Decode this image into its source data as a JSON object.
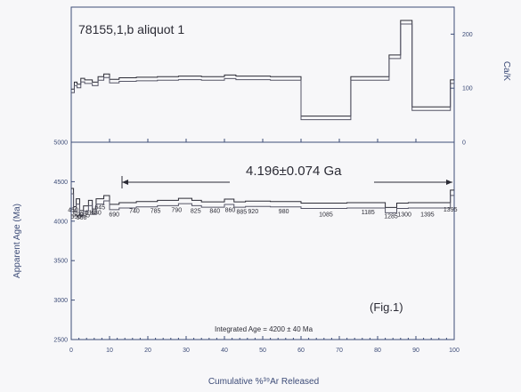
{
  "chart_data": [
    {
      "type": "line",
      "panel": "top",
      "title": "78155,1,b aliquot 1",
      "ylabel": "Ca/K",
      "ylim": [
        0,
        250
      ],
      "yticks": [
        0,
        100,
        200
      ],
      "xlim": [
        0,
        100
      ],
      "steps": [
        {
          "x0": 0,
          "x1": 0.8,
          "y": 95
        },
        {
          "x0": 0.8,
          "x1": 1.5,
          "y": 108
        },
        {
          "x0": 1.5,
          "x1": 2.5,
          "y": 104
        },
        {
          "x0": 2.5,
          "x1": 3.5,
          "y": 115
        },
        {
          "x0": 3.5,
          "x1": 5.5,
          "y": 112
        },
        {
          "x0": 5.5,
          "x1": 7,
          "y": 108
        },
        {
          "x0": 7,
          "x1": 8.5,
          "y": 118
        },
        {
          "x0": 8.5,
          "x1": 10,
          "y": 123
        },
        {
          "x0": 10,
          "x1": 12.5,
          "y": 113
        },
        {
          "x0": 12.5,
          "x1": 17,
          "y": 116
        },
        {
          "x0": 17,
          "x1": 22.5,
          "y": 117
        },
        {
          "x0": 22.5,
          "x1": 28,
          "y": 118
        },
        {
          "x0": 28,
          "x1": 34,
          "y": 119
        },
        {
          "x0": 34,
          "x1": 40,
          "y": 118
        },
        {
          "x0": 40,
          "x1": 43,
          "y": 121
        },
        {
          "x0": 43,
          "x1": 46,
          "y": 119
        },
        {
          "x0": 46,
          "x1": 52,
          "y": 119
        },
        {
          "x0": 52,
          "x1": 60,
          "y": 118
        },
        {
          "x0": 60,
          "x1": 73,
          "y": 45
        },
        {
          "x0": 73,
          "x1": 83,
          "y": 118
        },
        {
          "x0": 83,
          "x1": 86,
          "y": 158
        },
        {
          "x0": 86,
          "x1": 89,
          "y": 222
        },
        {
          "x0": 89,
          "x1": 99,
          "y": 62
        },
        {
          "x0": 99,
          "x1": 100,
          "y": 112
        }
      ]
    },
    {
      "type": "line",
      "panel": "bottom",
      "ylabel": "Apparent Age (Ma)",
      "xlabel": "Cumulative %³⁹Ar Released",
      "ylim": [
        2500,
        5000
      ],
      "yticks": [
        2500,
        3000,
        3500,
        4000,
        4500,
        5000
      ],
      "xlim": [
        0,
        100
      ],
      "xticks": [
        0,
        10,
        20,
        30,
        40,
        50,
        60,
        70,
        80,
        90,
        100
      ],
      "plateau_label": "4.196±0.074 Ga",
      "plateau_range": [
        13,
        100
      ],
      "integrated_age": "Integrated Age = 4200 ± 40 Ma",
      "figure_label": "(Fig.1)",
      "steps": [
        {
          "x0": 0,
          "x1": 0.6,
          "y": 4380,
          "t": "450"
        },
        {
          "x0": 0.6,
          "x1": 1.3,
          "y": 4150,
          "t": "500"
        },
        {
          "x0": 1.3,
          "x1": 2.2,
          "y": 4250,
          "t": "550"
        },
        {
          "x0": 2.2,
          "x1": 3.2,
          "y": 4100,
          "t": "560"
        },
        {
          "x0": 3.2,
          "x1": 4.5,
          "y": 4160,
          "t": "595"
        },
        {
          "x0": 4.5,
          "x1": 5.5,
          "y": 4230,
          "t": "610"
        },
        {
          "x0": 5.5,
          "x1": 6.5,
          "y": 4120,
          "t": "630"
        },
        {
          "x0": 6.5,
          "x1": 8.5,
          "y": 4250,
          "t": "645"
        },
        {
          "x0": 8.5,
          "x1": 10,
          "y": 4290,
          "t": "660"
        },
        {
          "x0": 10,
          "x1": 12.5,
          "y": 4180,
          "t": "690"
        },
        {
          "x0": 12.5,
          "x1": 17,
          "y": 4200,
          "t": "740"
        },
        {
          "x0": 17,
          "x1": 22.5,
          "y": 4215,
          "t": "785"
        },
        {
          "x0": 22.5,
          "x1": 28,
          "y": 4230,
          "t": "790"
        },
        {
          "x0": 28,
          "x1": 31.5,
          "y": 4255,
          "t": "825"
        },
        {
          "x0": 31.5,
          "x1": 34,
          "y": 4230,
          "t": "825"
        },
        {
          "x0": 34,
          "x1": 40,
          "y": 4210,
          "t": "840"
        },
        {
          "x0": 40,
          "x1": 42.5,
          "y": 4245,
          "t": "860"
        },
        {
          "x0": 42.5,
          "x1": 45.5,
          "y": 4210,
          "t": "885"
        },
        {
          "x0": 45.5,
          "x1": 52,
          "y": 4220,
          "t": "920"
        },
        {
          "x0": 52,
          "x1": 60,
          "y": 4215,
          "t": "980"
        },
        {
          "x0": 60,
          "x1": 72,
          "y": 4195,
          "t": "1085"
        },
        {
          "x0": 72,
          "x1": 82,
          "y": 4200,
          "t": "1185"
        },
        {
          "x0": 82,
          "x1": 85,
          "y": 4140,
          "t": "1285"
        },
        {
          "x0": 85,
          "x1": 88,
          "y": 4195,
          "t": "1300"
        },
        {
          "x0": 88,
          "x1": 99,
          "y": 4200,
          "t": "1395"
        },
        {
          "x0": 99,
          "x1": 100,
          "y": 4360,
          "t": "1395"
        }
      ]
    }
  ],
  "temp_labels": [
    {
      "x": 0.5,
      "y": 4115,
      "t": "450"
    },
    {
      "x": 1.8,
      "y": 4060,
      "t": "500"
    },
    {
      "x": 1.2,
      "y": 4030,
      "t": "550"
    },
    {
      "x": 2.7,
      "y": 4020,
      "t": "560"
    },
    {
      "x": 3.5,
      "y": 4050,
      "t": "595"
    },
    {
      "x": 5.0,
      "y": 4085,
      "t": "610"
    },
    {
      "x": 6.5,
      "y": 4085,
      "t": "630"
    },
    {
      "x": 7.5,
      "y": 4150,
      "t": "645"
    },
    {
      "x": 11.2,
      "y": 4060,
      "t": "690"
    },
    {
      "x": 16.5,
      "y": 4105,
      "t": "740"
    },
    {
      "x": 22.0,
      "y": 4105,
      "t": "785"
    },
    {
      "x": 27.5,
      "y": 4115,
      "t": "790"
    },
    {
      "x": 32.5,
      "y": 4105,
      "t": "825"
    },
    {
      "x": 37.5,
      "y": 4105,
      "t": "840"
    },
    {
      "x": 41.5,
      "y": 4115,
      "t": "860"
    },
    {
      "x": 44.5,
      "y": 4095,
      "t": "885"
    },
    {
      "x": 47.5,
      "y": 4100,
      "t": "920"
    },
    {
      "x": 55.5,
      "y": 4100,
      "t": "980"
    },
    {
      "x": 66.5,
      "y": 4060,
      "t": "1085"
    },
    {
      "x": 77.5,
      "y": 4090,
      "t": "1185"
    },
    {
      "x": 83.5,
      "y": 4035,
      "t": "1285"
    },
    {
      "x": 87.0,
      "y": 4060,
      "t": "1300"
    },
    {
      "x": 93.0,
      "y": 4060,
      "t": "1395"
    },
    {
      "x": 99.0,
      "y": 4120,
      "t": "1395"
    }
  ],
  "colors": {
    "axis": "#3d4c78",
    "line": "#2b2b35"
  }
}
